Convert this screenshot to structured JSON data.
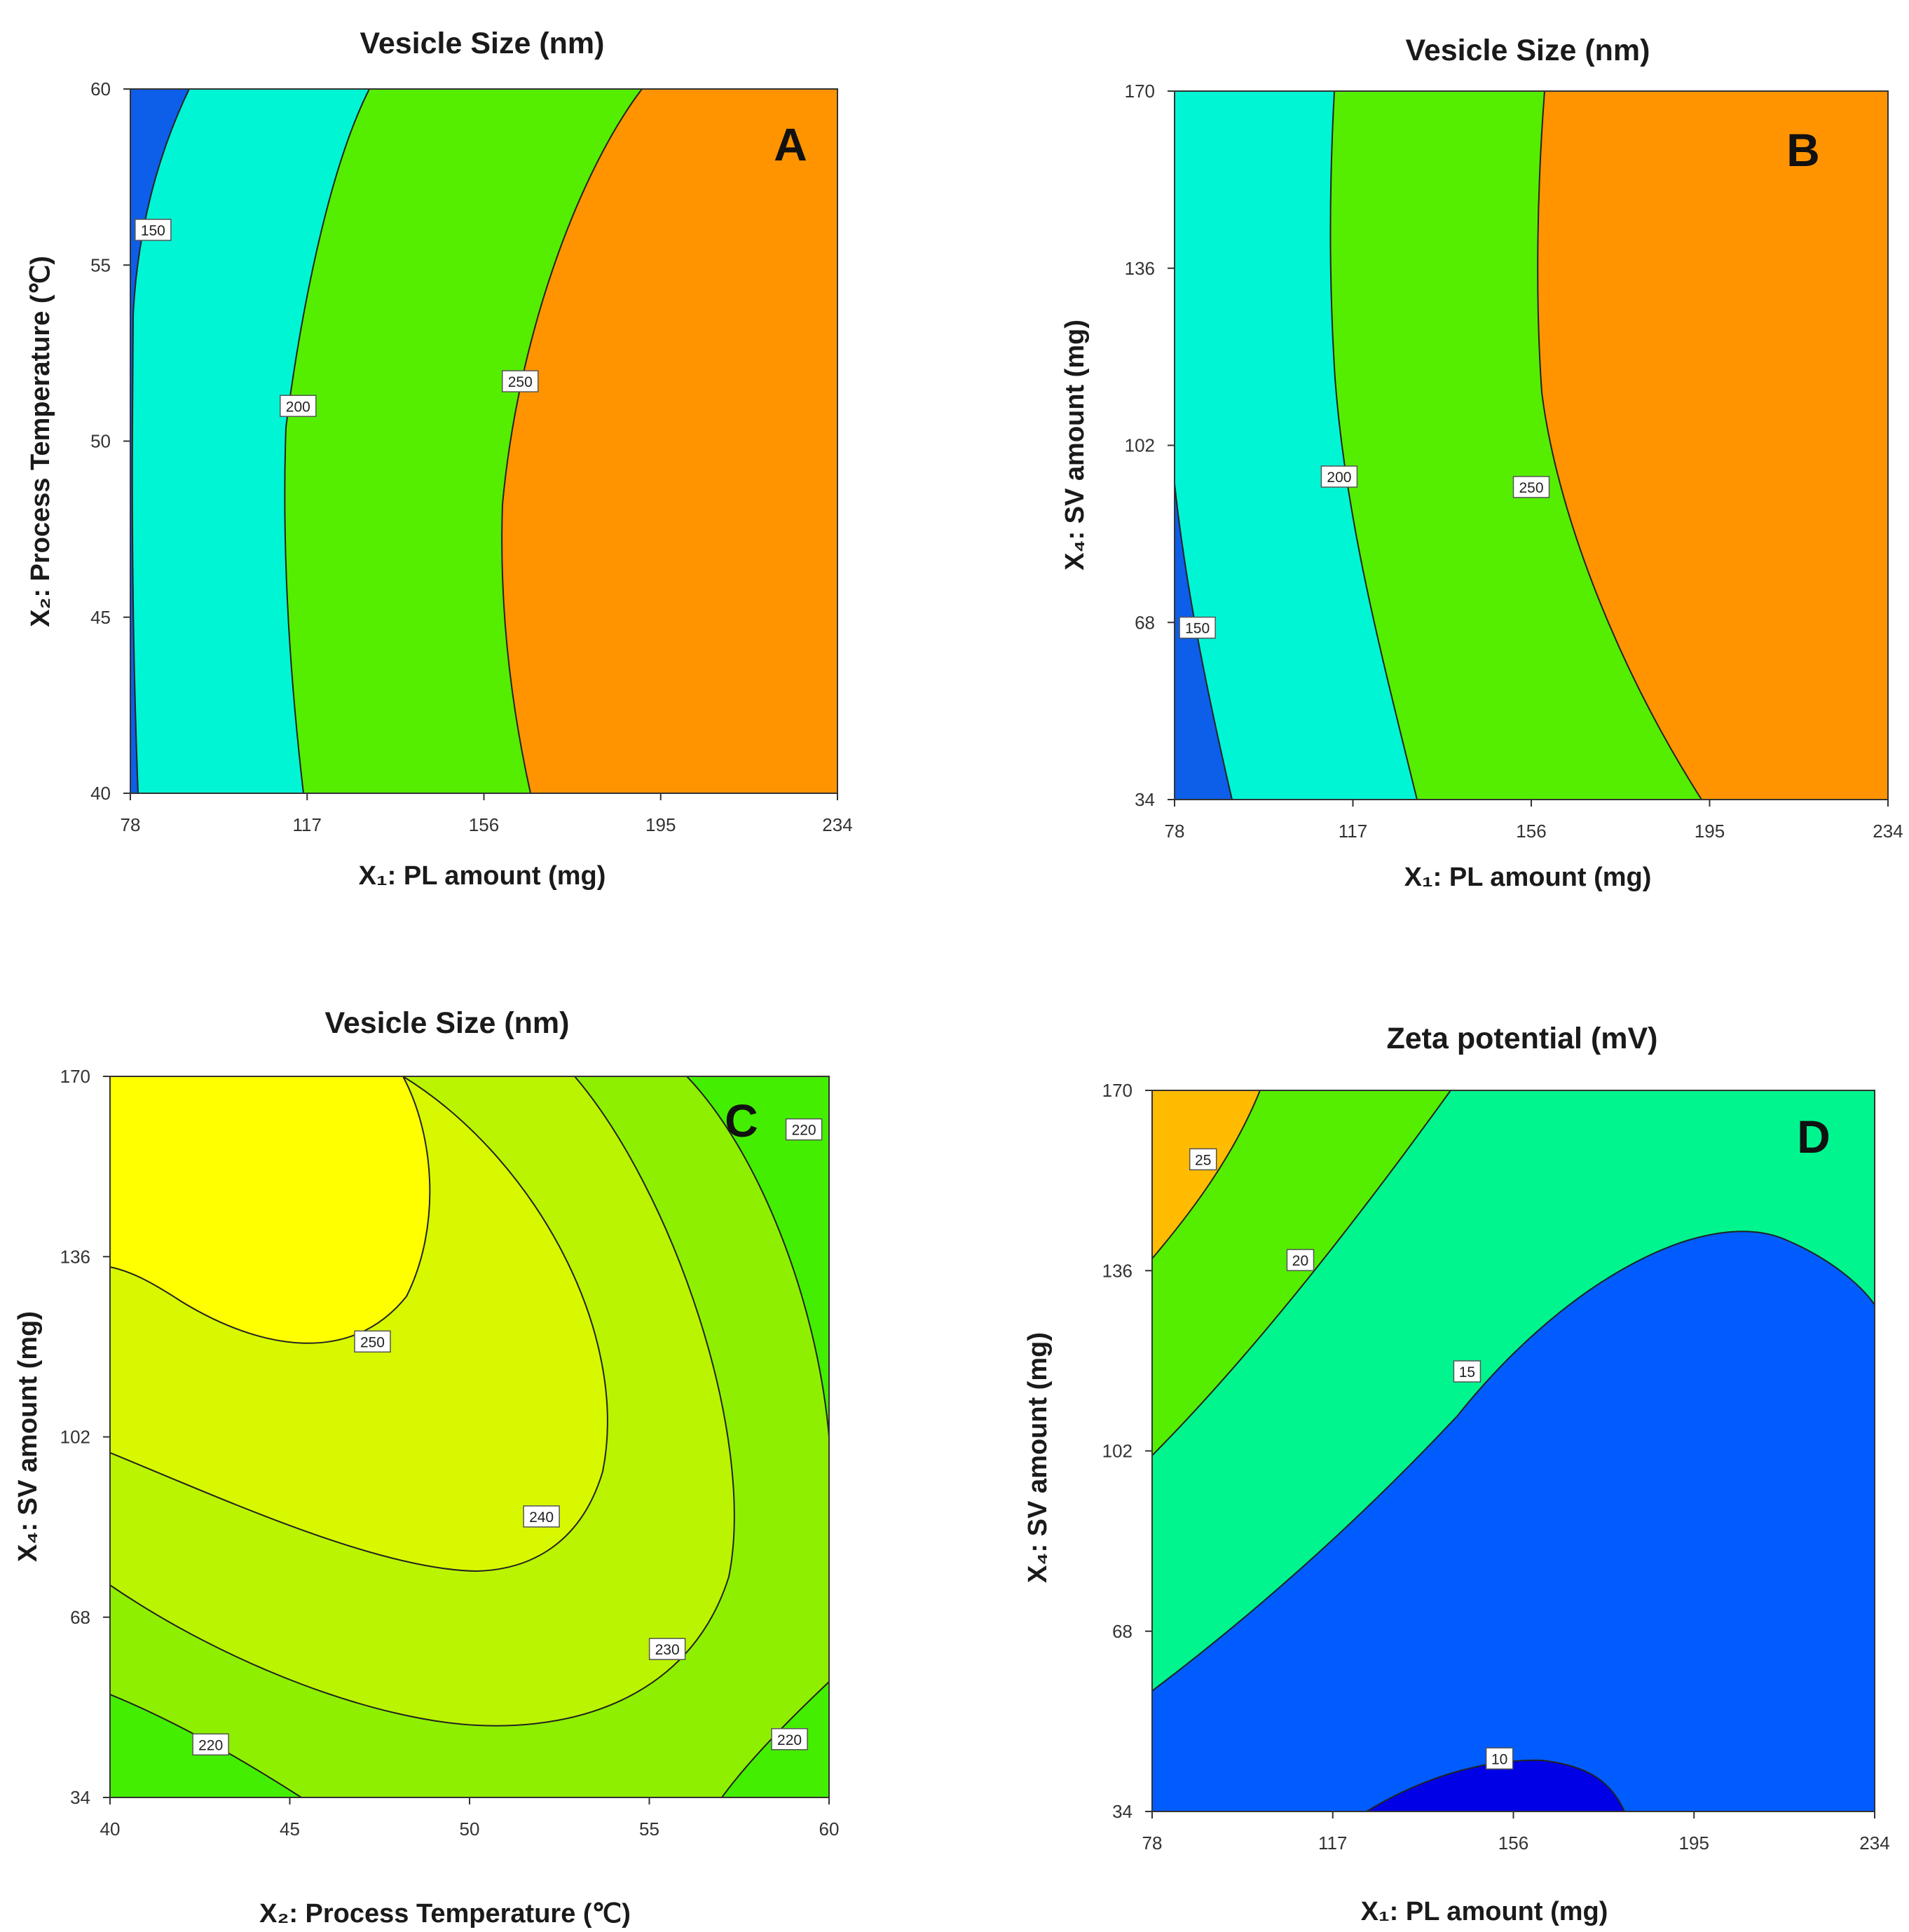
{
  "chart_data": [
    {
      "type": "contour",
      "panel": "A",
      "title": "Vesicle Size (nm)",
      "xlabel": "X₁: PL amount (mg)",
      "ylabel": "X₂: Process Temperature (℃)",
      "xlim": [
        78,
        234
      ],
      "ylim": [
        40,
        60
      ],
      "xticks": [
        "78",
        "117",
        "156",
        "195",
        "234"
      ],
      "yticks": [
        "40",
        "45",
        "50",
        "55",
        "60"
      ],
      "colors": [
        "#0d5ee8",
        "#00f5d5",
        "#55ee00",
        "#ff9400"
      ],
      "levels": [
        {
          "value": 150,
          "label": "150",
          "label_at": [
            83,
            56
          ]
        },
        {
          "value": 200,
          "label": "200",
          "label_at": [
            115,
            51
          ]
        },
        {
          "value": 250,
          "label": "250",
          "label_at": [
            164,
            51.7
          ]
        }
      ]
    },
    {
      "type": "contour",
      "panel": "B",
      "title": "Vesicle Size (nm)",
      "xlabel": "X₁: PL amount (mg)",
      "ylabel": "X₄: SV amount (mg)",
      "xlim": [
        78,
        234
      ],
      "ylim": [
        34,
        170
      ],
      "xticks": [
        "78",
        "117",
        "156",
        "195",
        "234"
      ],
      "yticks": [
        "34",
        "68",
        "102",
        "136",
        "170"
      ],
      "colors": [
        "#0d5ee8",
        "#00f5d5",
        "#55ee00",
        "#ff9400"
      ],
      "levels": [
        {
          "value": 150,
          "label": "150",
          "label_at": [
            83,
            67
          ]
        },
        {
          "value": 200,
          "label": "200",
          "label_at": [
            114,
            96
          ]
        },
        {
          "value": 250,
          "label": "250",
          "label_at": [
            156,
            94
          ]
        }
      ]
    },
    {
      "type": "contour",
      "panel": "C",
      "title": "Vesicle Size (nm)",
      "xlabel": "X₂: Process Temperature (℃)",
      "ylabel": "X₄: SV amount (mg)",
      "xlim": [
        40,
        60
      ],
      "ylim": [
        34,
        170
      ],
      "xticks": [
        "40",
        "45",
        "50",
        "55",
        "60"
      ],
      "yticks": [
        "34",
        "68",
        "102",
        "136",
        "170"
      ],
      "colors": [
        "#44ee00",
        "#8ef000",
        "#baf400",
        "#d8f800",
        "#ffff00"
      ],
      "levels": [
        {
          "value": 220,
          "label": "220",
          "label_at": [
            42.8,
            44
          ]
        },
        {
          "value": 220,
          "label": "220",
          "label_at": [
            58.9,
            45
          ]
        },
        {
          "value": 220,
          "label": "220",
          "label_at": [
            59.3,
            160
          ]
        },
        {
          "value": 230,
          "label": "230",
          "label_at": [
            55.5,
            62
          ]
        },
        {
          "value": 240,
          "label": "240",
          "label_at": [
            52,
            87
          ]
        },
        {
          "value": 250,
          "label": "250",
          "label_at": [
            47.3,
            120
          ]
        }
      ]
    },
    {
      "type": "contour",
      "panel": "D",
      "title": "Zeta potential (mV)",
      "xlabel": "X₁: PL amount (mg)",
      "ylabel": "X₄: SV amount (mg)",
      "xlim": [
        78,
        234
      ],
      "ylim": [
        34,
        170
      ],
      "xticks": [
        "78",
        "117",
        "156",
        "195",
        "234"
      ],
      "yticks": [
        "34",
        "68",
        "102",
        "136",
        "170"
      ],
      "colors": [
        "#0000e6",
        "#005cff",
        "#00f58e",
        "#55ee00",
        "#ffbb00"
      ],
      "levels": [
        {
          "value": 10,
          "label": "10",
          "label_at": [
            153,
            44
          ]
        },
        {
          "value": 15,
          "label": "15",
          "label_at": [
            146,
            117
          ]
        },
        {
          "value": 20,
          "label": "20",
          "label_at": [
            110,
            138
          ]
        },
        {
          "value": 25,
          "label": "25",
          "label_at": [
            89,
            157
          ]
        }
      ]
    }
  ]
}
